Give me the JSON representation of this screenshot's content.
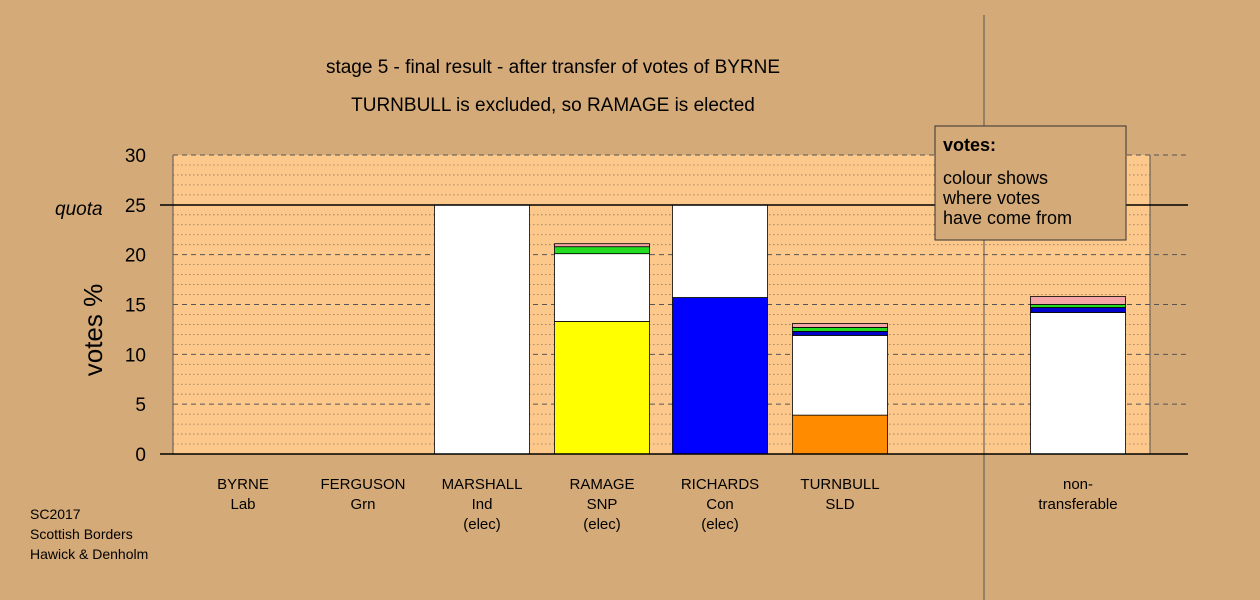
{
  "chart_data": {
    "type": "bar",
    "stacked": true,
    "title": "stage 5 - final result - after transfer of votes of BYRNE",
    "subtitle": "TURNBULL is excluded, so RAMAGE is elected",
    "ylabel": "votes %",
    "ylim": [
      0,
      30
    ],
    "yticks": [
      0,
      5,
      10,
      15,
      20,
      25,
      30
    ],
    "quota": 25,
    "quota_label": "quota",
    "grid": true,
    "categories": [
      {
        "name": "BYRNE",
        "party": "Lab",
        "status": ""
      },
      {
        "name": "FERGUSON",
        "party": "Grn",
        "status": ""
      },
      {
        "name": "MARSHALL",
        "party": "Ind",
        "status": "(elec)"
      },
      {
        "name": "RAMAGE",
        "party": "SNP",
        "status": "(elec)"
      },
      {
        "name": "RICHARDS",
        "party": "Con",
        "status": "(elec)"
      },
      {
        "name": "TURNBULL",
        "party": "SLD",
        "status": ""
      },
      {
        "name": "non-",
        "party": "transferable",
        "status": ""
      }
    ],
    "stacks": [
      [],
      [],
      [
        {
          "value": 25.0,
          "color": "#ffffff"
        }
      ],
      [
        {
          "value": 13.3,
          "color": "#ffff00"
        },
        {
          "value": 6.8,
          "color": "#ffffff"
        },
        {
          "value": 0.7,
          "color": "#22dd22"
        },
        {
          "value": 0.3,
          "color": "#f4a6a6"
        }
      ],
      [
        {
          "value": 15.7,
          "color": "#0000ff"
        },
        {
          "value": 9.3,
          "color": "#ffffff"
        }
      ],
      [
        {
          "value": 3.9,
          "color": "#ff8c00"
        },
        {
          "value": 8.0,
          "color": "#ffffff"
        },
        {
          "value": 0.4,
          "color": "#0000cc"
        },
        {
          "value": 0.4,
          "color": "#22dd22"
        },
        {
          "value": 0.4,
          "color": "#f4a6a6"
        }
      ],
      [
        {
          "value": 14.2,
          "color": "#ffffff"
        },
        {
          "value": 0.5,
          "color": "#0000cc"
        },
        {
          "value": 0.3,
          "color": "#22dd22"
        },
        {
          "value": 0.8,
          "color": "#f4a6a6"
        }
      ]
    ],
    "legend": {
      "title": "votes:",
      "lines": [
        "colour shows",
        "where votes",
        "have come from"
      ],
      "position": "top-right"
    },
    "colors": {
      "background": "#d4aa78",
      "plot_bg": "#fcc88c"
    }
  },
  "footer": {
    "lines": [
      "SC2017",
      "Scottish Borders",
      "Hawick & Denholm"
    ]
  }
}
